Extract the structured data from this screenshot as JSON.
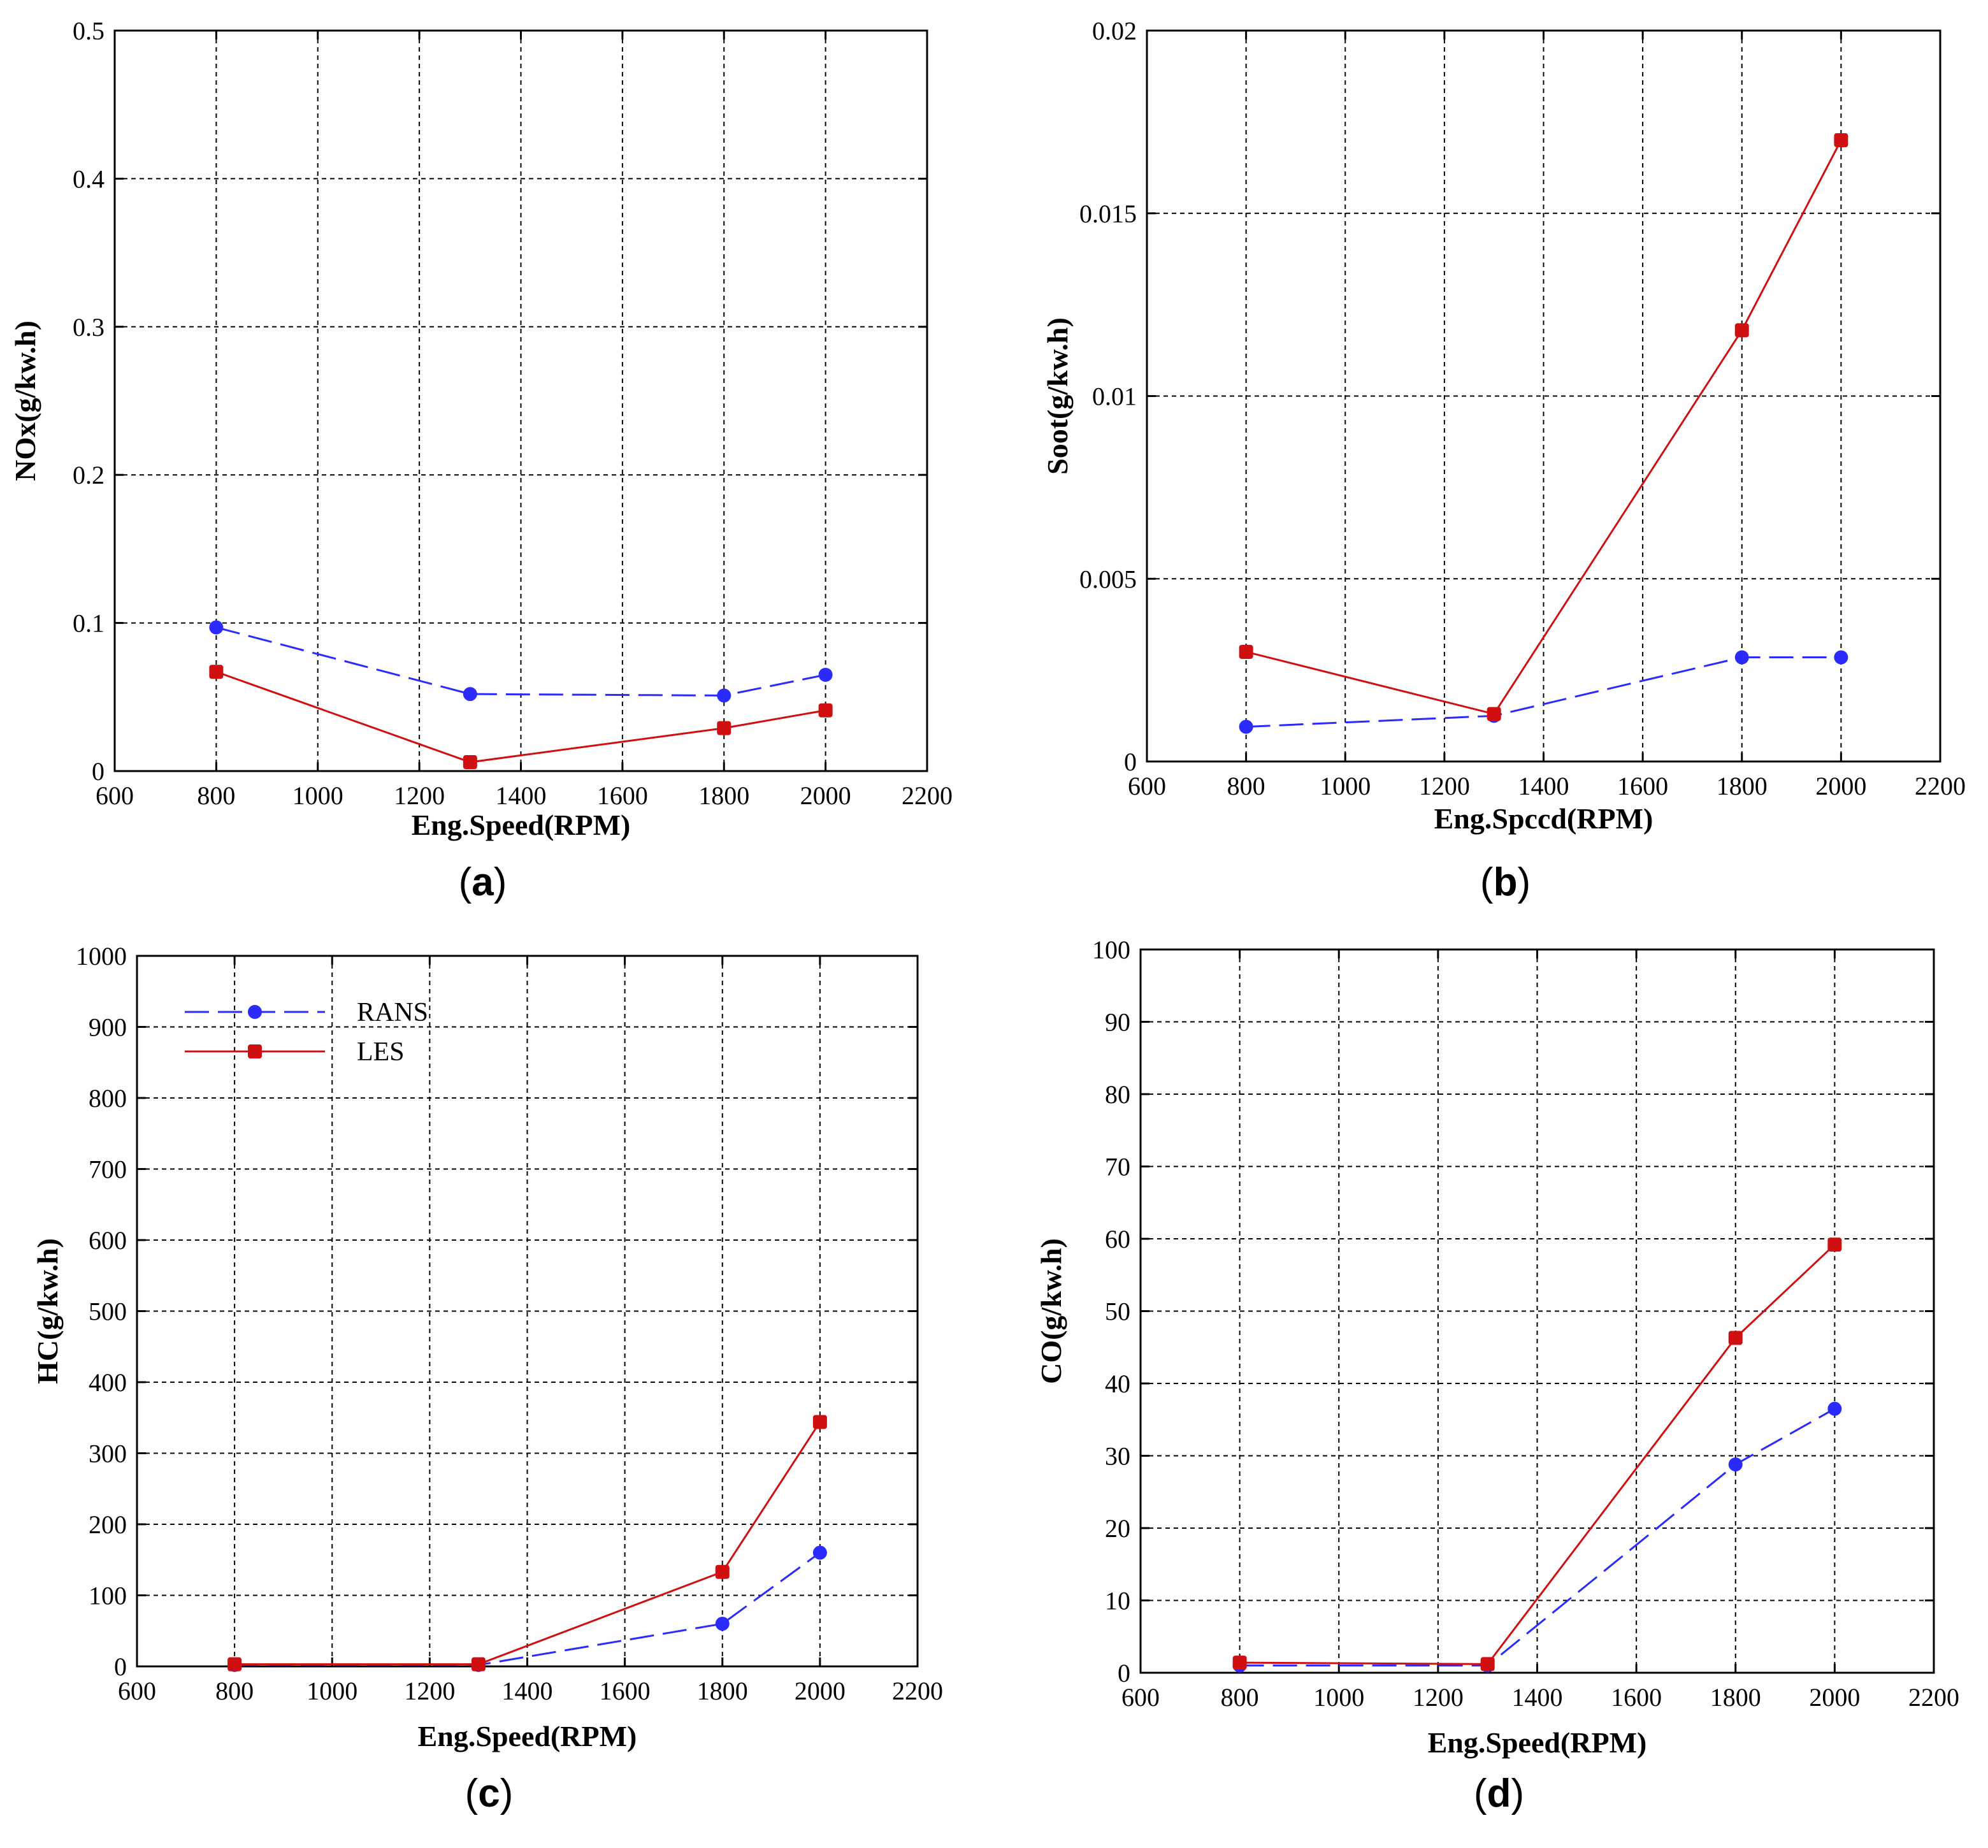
{
  "figure": {
    "colors": {
      "rans": "#2b2bff",
      "les": "#d01010",
      "axis": "#000000",
      "grid": "#000000"
    },
    "legend": {
      "entries": [
        {
          "label": "RANS",
          "series": "rans"
        },
        {
          "label": "LES",
          "series": "les"
        }
      ]
    }
  },
  "chart_data": [
    {
      "type": "line",
      "panel": "a",
      "caption": {
        "open": "(",
        "letter": "a",
        "close": ")"
      },
      "xlabel": "Eng.Speed(RPM)",
      "ylabel": "NOx(g/kw.h)",
      "xlim": [
        600,
        2200
      ],
      "ylim": [
        0,
        0.5
      ],
      "xticks": [
        600,
        800,
        1000,
        1200,
        1400,
        1600,
        1800,
        2000,
        2200
      ],
      "yticks": [
        0,
        0.1,
        0.2,
        0.3,
        0.4,
        0.5
      ],
      "ytick_labels": [
        "0",
        "0.1",
        "0.2",
        "0.3",
        "0.4",
        "0.5"
      ],
      "grid": true,
      "x": [
        800,
        1300,
        1800,
        2000
      ],
      "series": [
        {
          "name": "RANS",
          "key": "rans",
          "dash": true,
          "values": [
            0.097,
            0.052,
            0.051,
            0.065
          ]
        },
        {
          "name": "LES",
          "key": "les",
          "dash": false,
          "values": [
            0.067,
            0.006,
            0.029,
            0.041
          ]
        }
      ]
    },
    {
      "type": "line",
      "panel": "b",
      "caption": {
        "open": "(",
        "letter": "b",
        "close": ")"
      },
      "xlabel": "Eng.Spccd(RPM)",
      "ylabel": "Soot(g/kw.h)",
      "xlim": [
        600,
        2200
      ],
      "ylim": [
        0,
        0.02
      ],
      "xticks": [
        600,
        800,
        1000,
        1200,
        1400,
        1600,
        1800,
        2000,
        2200
      ],
      "yticks": [
        0,
        0.005,
        0.01,
        0.015,
        0.02
      ],
      "ytick_labels": [
        "0",
        "0.005",
        "0.01",
        "0.015",
        "0.02"
      ],
      "grid": true,
      "x": [
        800,
        1300,
        1800,
        2000
      ],
      "series": [
        {
          "name": "RANS",
          "key": "rans",
          "dash": true,
          "values": [
            0.00095,
            0.00125,
            0.00285,
            0.00285
          ]
        },
        {
          "name": "LES",
          "key": "les",
          "dash": false,
          "values": [
            0.003,
            0.0013,
            0.0118,
            0.017
          ]
        }
      ]
    },
    {
      "type": "line",
      "panel": "c",
      "caption": {
        "open": "(",
        "letter": "c",
        "close": ")"
      },
      "xlabel": "Eng.Speed(RPM)",
      "ylabel": "HC(g/kw.h)",
      "xlim": [
        600,
        2200
      ],
      "ylim": [
        0,
        1000
      ],
      "xticks": [
        600,
        800,
        1000,
        1200,
        1400,
        1600,
        1800,
        2000,
        2200
      ],
      "yticks": [
        0,
        100,
        200,
        300,
        400,
        500,
        600,
        700,
        800,
        900,
        1000
      ],
      "ytick_labels": [
        "0",
        "100",
        "200",
        "300",
        "400",
        "500",
        "600",
        "700",
        "800",
        "900",
        "1000"
      ],
      "grid": true,
      "has_legend": true,
      "x": [
        800,
        1300,
        1800,
        2000
      ],
      "series": [
        {
          "name": "RANS",
          "key": "rans",
          "dash": true,
          "values": [
            2,
            2,
            60,
            160
          ]
        },
        {
          "name": "LES",
          "key": "les",
          "dash": false,
          "values": [
            3,
            3,
            133,
            344
          ]
        }
      ]
    },
    {
      "type": "line",
      "panel": "d",
      "caption": {
        "open": "(",
        "letter": "d",
        "close": ")"
      },
      "xlabel": "Eng.Speed(RPM)",
      "ylabel": "CO(g/kw.h)",
      "xlim": [
        600,
        2200
      ],
      "ylim": [
        0,
        100
      ],
      "xticks": [
        600,
        800,
        1000,
        1200,
        1400,
        1600,
        1800,
        2000,
        2200
      ],
      "yticks": [
        0,
        10,
        20,
        30,
        40,
        50,
        60,
        70,
        80,
        90,
        100
      ],
      "ytick_labels": [
        "0",
        "10",
        "20",
        "30",
        "40",
        "50",
        "60",
        "70",
        "80",
        "90",
        "100"
      ],
      "grid": true,
      "x": [
        800,
        1300,
        1800,
        2000
      ],
      "series": [
        {
          "name": "RANS",
          "key": "rans",
          "dash": true,
          "values": [
            1.0,
            1.0,
            28.8,
            36.5
          ]
        },
        {
          "name": "LES",
          "key": "les",
          "dash": false,
          "values": [
            1.4,
            1.2,
            46.3,
            59.2
          ]
        }
      ]
    }
  ]
}
